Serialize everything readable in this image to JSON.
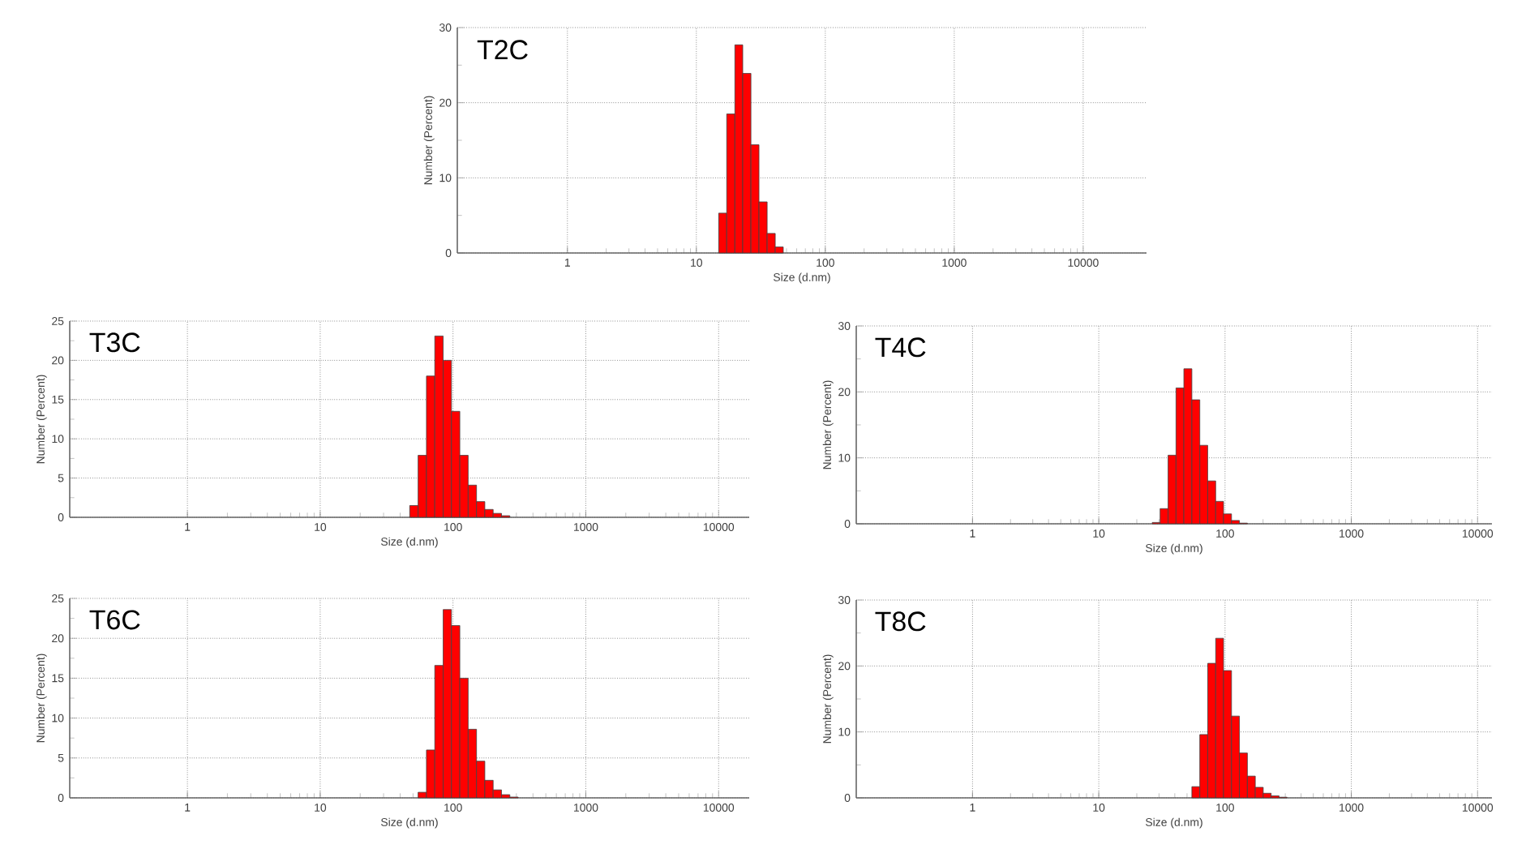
{
  "chart_data": [
    {
      "type": "histogram",
      "title": "T2C",
      "xlabel": "Size (d.nm)",
      "ylabel": "Number (Percent)",
      "log": "x",
      "grid": true,
      "color": "#ff0000",
      "bins": [
        14.9,
        17.2,
        19.9,
        22.9,
        26.5,
        30.6,
        35.4,
        40.9,
        47.2
      ],
      "values": [
        5.3,
        18.5,
        27.7,
        23.9,
        14.4,
        6.8,
        2.6,
        0.8
      ],
      "xlim": [
        0.14,
        31000
      ],
      "ylim": [
        0,
        30
      ],
      "xticks": [
        1,
        10,
        100,
        1000,
        10000
      ],
      "yticks": [
        0,
        10,
        20,
        30
      ]
    },
    {
      "type": "histogram",
      "title": "T3C",
      "xlabel": "Size (d.nm)",
      "ylabel": "Number (Percent)",
      "log": "x",
      "grid": true,
      "color": "#ff0000",
      "bins": [
        47.2,
        54.6,
        63.1,
        72.9,
        84.3,
        97.3,
        112.5,
        130.0,
        150.3,
        173.6,
        200.6,
        231.8,
        267.9
      ],
      "values": [
        1.5,
        7.9,
        18.0,
        23.1,
        20.0,
        13.5,
        7.9,
        4.1,
        2.0,
        1.0,
        0.5,
        0.2
      ],
      "xlim": [
        0.13,
        17000
      ],
      "ylim": [
        0,
        25
      ],
      "xticks": [
        1,
        10,
        100,
        1000,
        10000
      ],
      "yticks": [
        0,
        5,
        10,
        15,
        20,
        25
      ]
    },
    {
      "type": "histogram",
      "title": "T4C",
      "xlabel": "Size (d.nm)",
      "ylabel": "Number (Percent)",
      "log": "x",
      "grid": true,
      "color": "#ff0000",
      "bins": [
        26.5,
        30.6,
        35.4,
        40.9,
        47.2,
        54.6,
        63.1,
        72.9,
        84.3,
        97.3,
        112.5,
        130.0,
        150.3
      ],
      "values": [
        0.2,
        2.3,
        10.4,
        20.6,
        23.5,
        18.8,
        11.9,
        6.5,
        3.4,
        1.5,
        0.5,
        0.1
      ],
      "xlim": [
        0.12,
        13000
      ],
      "ylim": [
        0,
        30
      ],
      "xticks": [
        1,
        10,
        100,
        1000,
        10000
      ],
      "yticks": [
        0,
        10,
        20,
        30
      ]
    },
    {
      "type": "histogram",
      "title": "T6C",
      "xlabel": "Size (d.nm)",
      "ylabel": "Number (Percent)",
      "log": "x",
      "grid": true,
      "color": "#ff0000",
      "bins": [
        54.6,
        63.1,
        72.9,
        84.3,
        97.3,
        112.5,
        130.0,
        150.3,
        173.6,
        200.6,
        231.8,
        267.9,
        309.6
      ],
      "values": [
        0.7,
        6.0,
        16.6,
        23.6,
        21.6,
        15.0,
        8.6,
        4.6,
        2.2,
        1.0,
        0.4,
        0.1
      ],
      "xlim": [
        0.13,
        17000
      ],
      "ylim": [
        0,
        25
      ],
      "xticks": [
        1,
        10,
        100,
        1000,
        10000
      ],
      "yticks": [
        0,
        5,
        10,
        15,
        20,
        25
      ]
    },
    {
      "type": "histogram",
      "title": "T8C",
      "xlabel": "Size (d.nm)",
      "ylabel": "Number (Percent)",
      "log": "x",
      "grid": true,
      "color": "#ff0000",
      "bins": [
        54.6,
        63.1,
        72.9,
        84.3,
        97.3,
        112.5,
        130.0,
        150.3,
        173.6,
        200.6,
        231.8,
        267.9,
        309.6
      ],
      "values": [
        1.7,
        9.6,
        20.4,
        24.2,
        19.3,
        12.4,
        6.8,
        3.3,
        1.6,
        0.7,
        0.3,
        0.1
      ],
      "xlim": [
        0.12,
        13000
      ],
      "ylim": [
        0,
        30
      ],
      "xticks": [
        1,
        10,
        100,
        1000,
        10000
      ],
      "yticks": [
        0,
        10,
        20,
        30
      ]
    }
  ]
}
